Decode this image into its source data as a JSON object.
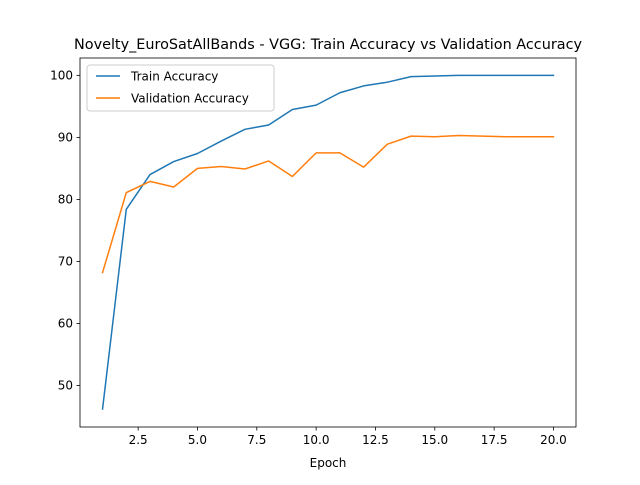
{
  "chart_data": {
    "type": "line",
    "title": "Novelty_EuroSatAllBands - VGG: Train Accuracy vs Validation Accuracy",
    "xlabel": "Epoch",
    "ylabel": "",
    "xlim": [
      0.05,
      20.95
    ],
    "ylim": [
      43.3,
      102.8
    ],
    "xticks": [
      2.5,
      5.0,
      7.5,
      10.0,
      12.5,
      15.0,
      17.5,
      20.0
    ],
    "xtick_labels": [
      "2.5",
      "5.0",
      "7.5",
      "10.0",
      "12.5",
      "15.0",
      "17.5",
      "20.0"
    ],
    "yticks": [
      50,
      60,
      70,
      80,
      90,
      100
    ],
    "ytick_labels": [
      "50",
      "60",
      "70",
      "80",
      "90",
      "100"
    ],
    "grid": false,
    "legend_position": "upper-left",
    "x": [
      1,
      2,
      3,
      4,
      5,
      6,
      7,
      8,
      9,
      10,
      11,
      12,
      13,
      14,
      15,
      16,
      17,
      18,
      19,
      20
    ],
    "series": [
      {
        "name": "Train Accuracy",
        "color": "#1f77b4",
        "values": [
          46.2,
          78.4,
          84.0,
          86.1,
          87.4,
          89.4,
          91.3,
          92.0,
          94.5,
          95.2,
          97.2,
          98.3,
          98.9,
          99.8,
          99.9,
          100.0,
          100.0,
          100.0,
          100.0,
          100.0
        ]
      },
      {
        "name": "Validation Accuracy",
        "color": "#ff7f0e",
        "values": [
          68.2,
          81.1,
          82.9,
          82.0,
          85.0,
          85.3,
          84.9,
          86.2,
          83.7,
          87.5,
          87.5,
          85.2,
          88.9,
          90.2,
          90.1,
          90.3,
          90.2,
          90.1,
          90.1,
          90.1
        ]
      }
    ]
  }
}
